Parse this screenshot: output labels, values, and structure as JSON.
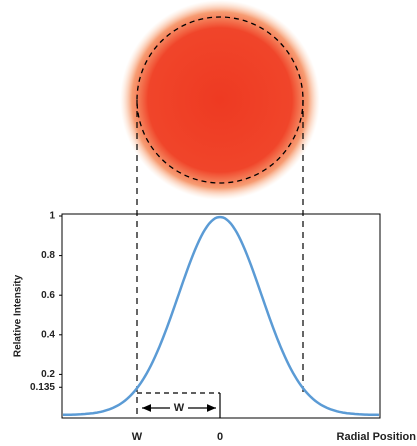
{
  "diagram": {
    "y_label": "Relative Intensity",
    "x_label": "Radial Position",
    "yticks": [
      1,
      0.8,
      0.6,
      0.4,
      0.2,
      0.135
    ],
    "xticks": [
      "W",
      "0"
    ],
    "width_annotation": "W"
  }
}
